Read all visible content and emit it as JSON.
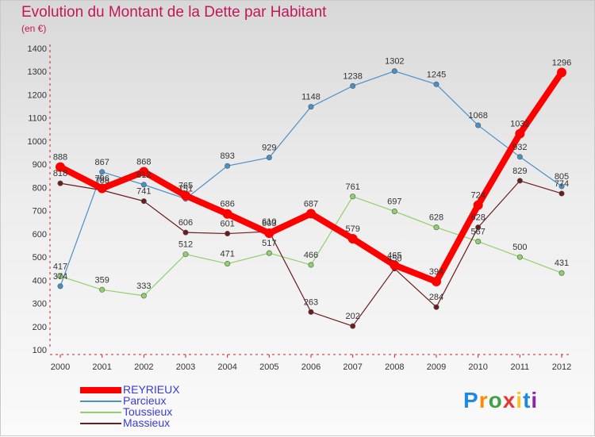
{
  "chart_data": {
    "type": "line",
    "title": "Evolution du Montant de la Dette par Habitant",
    "subtitle": "(en €)",
    "x": [
      "2000",
      "2001",
      "2002",
      "2003",
      "2004",
      "2005",
      "2006",
      "2007",
      "2008",
      "2009",
      "2010",
      "2011",
      "2012"
    ],
    "ylim": [
      100,
      1400
    ],
    "yticks": [
      100,
      200,
      300,
      400,
      500,
      600,
      700,
      800,
      900,
      1000,
      1100,
      1200,
      1300,
      1400
    ],
    "grid": false,
    "legend_position": "bottom-left",
    "series": [
      {
        "name": "REYRIEUX",
        "color": "#ff0000",
        "values": [
          888,
          796,
          868,
          765,
          686,
          603,
          687,
          579,
          465,
          394,
          724,
          1032,
          1296
        ]
      },
      {
        "name": "Parcieux",
        "color": "#4a90c8",
        "values": [
          374,
          867,
          812,
          751,
          893,
          929,
          1148,
          1238,
          1302,
          1245,
          1068,
          932,
          805
        ]
      },
      {
        "name": "Toussieux",
        "color": "#8fd16b",
        "values": [
          417,
          359,
          333,
          512,
          471,
          517,
          466,
          761,
          697,
          628,
          567,
          500,
          431
        ]
      },
      {
        "name": "Massieux",
        "color": "#6b1d1d",
        "values": [
          818,
          788,
          741,
          606,
          601,
          610,
          263,
          202,
          450,
          284,
          628,
          829,
          774
        ]
      }
    ]
  },
  "logo": {
    "text": "Proxiti",
    "letters": [
      "P",
      "r",
      "o",
      "x",
      "i",
      "t",
      "i"
    ],
    "colors": [
      "#1e88e5",
      "#fb8c00",
      "#43a047",
      "#e53935",
      "#fbc02d",
      "#1e88e5",
      "#8e24aa"
    ]
  }
}
